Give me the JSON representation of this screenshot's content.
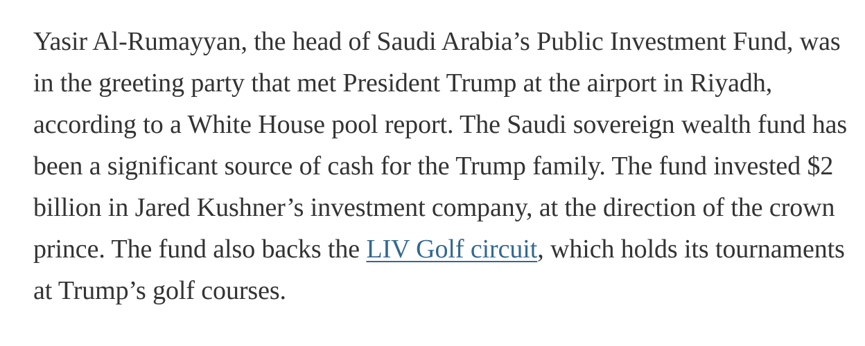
{
  "article": {
    "paragraph": {
      "text_before_link": "Yasir Al-Rumayyan, the head of Saudi Arabia’s Public Investment Fund, was in the greeting party that met President Trump at the airport in Riyadh, according to a White House pool report. The Saudi sovereign wealth fund has been a significant source of cash for the Trump family. The fund invested $2 billion in Jared Kushner’s investment company, at the direction of the crown prince. The fund also backs the ",
      "link_text": "LIV Golf circuit",
      "text_after_link": ", which holds its tournaments at Trump’s golf courses."
    },
    "colors": {
      "text": "#333333",
      "link": "#326891",
      "background": "#ffffff"
    }
  }
}
